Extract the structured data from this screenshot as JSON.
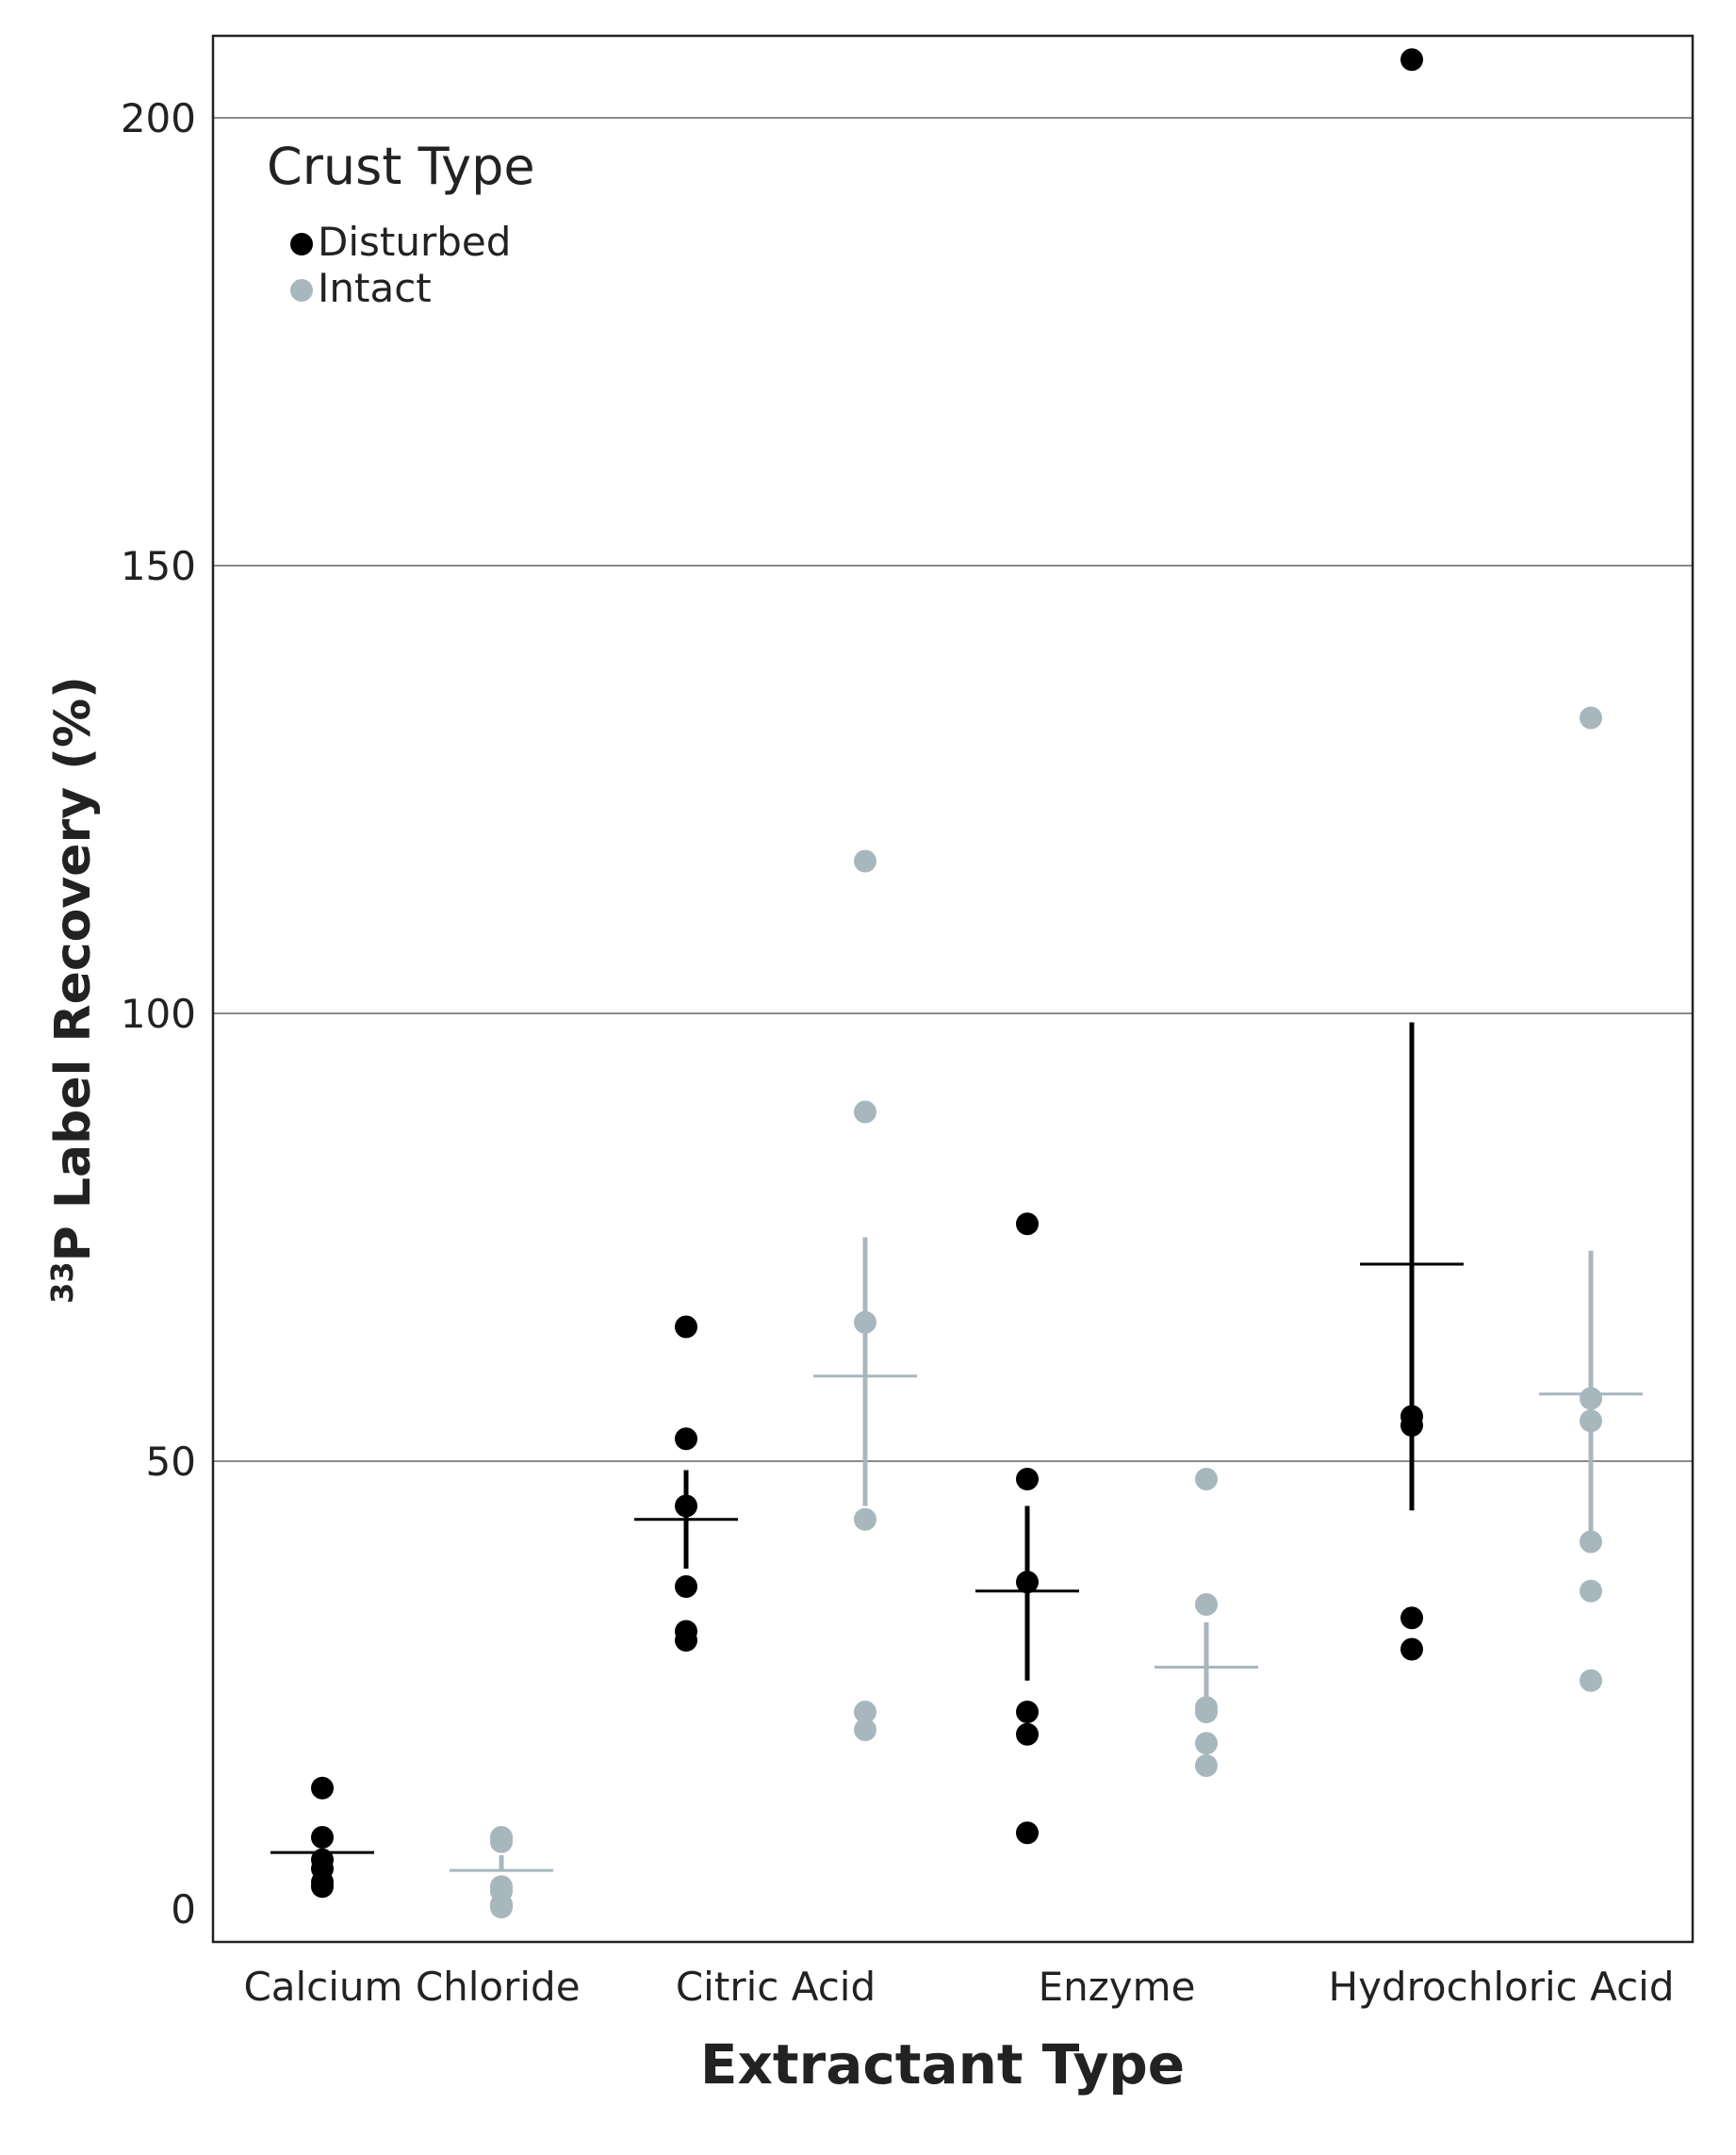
{
  "chart_data": {
    "type": "scatter",
    "title": "",
    "xlabel": "Extractant Type",
    "ylabel_sup": "33",
    "ylabel": "P Label Recovery (%)",
    "ylim": [
      -5,
      210
    ],
    "yticks": [
      0,
      50,
      100,
      150,
      200
    ],
    "categories": [
      "Calcium Chloride",
      "Citric Acid",
      "Enzyme",
      "Hydrochloric Acid"
    ],
    "legend": {
      "title": "Crust Type",
      "position": "top-left",
      "entries": [
        "Disturbed",
        "Intact"
      ]
    },
    "colors": {
      "Disturbed": "#000000",
      "Intact": "#a7b7bd"
    },
    "series": [
      {
        "name": "Disturbed",
        "points": [
          [
            13.5,
            8.0,
            5.5,
            4.5,
            3.0,
            2.5
          ],
          [
            65,
            52.5,
            45,
            36,
            31,
            30
          ],
          [
            76.5,
            48,
            36.5,
            22,
            19.5,
            8.5
          ],
          [
            206.5,
            55,
            54,
            32.5,
            29
          ]
        ],
        "mean": [
          6.3,
          43.5,
          35.5,
          72
        ],
        "err_low": [
          6.3,
          38,
          25.5,
          44.5
        ],
        "err_high": [
          6.3,
          49,
          45,
          99
        ]
      },
      {
        "name": "Intact",
        "points": [
          [
            8.0,
            7.5,
            2.5,
            2.0,
            0.5,
            0.2
          ],
          [
            117,
            89,
            65.5,
            43.5,
            22,
            20
          ],
          [
            48,
            34,
            22.5,
            22,
            18.5,
            16
          ],
          [
            133,
            57,
            54.5,
            41,
            35.5,
            25.5
          ]
        ],
        "mean": [
          4.3,
          59.5,
          27,
          57.5
        ],
        "err_low": [
          4.3,
          45,
          22.5,
          42
        ],
        "err_high": [
          6.0,
          75,
          32,
          73.5
        ]
      }
    ]
  }
}
